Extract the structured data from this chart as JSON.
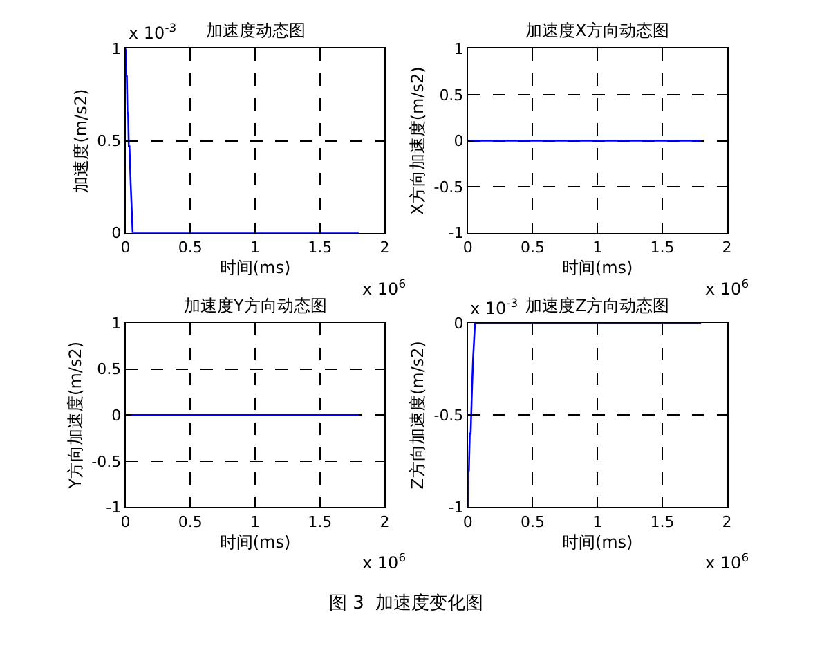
{
  "chart_data": [
    {
      "type": "line",
      "title": "加速度动态图",
      "xlabel": "时间(ms)",
      "ylabel": "加速度(m/s2)",
      "x": [
        0,
        0.005,
        0.01,
        0.015,
        0.02,
        0.025,
        0.03,
        0.04,
        0.055,
        1.8
      ],
      "series": [
        {
          "color": "#0000ff",
          "values": [
            1,
            0.85,
            0.85,
            0.65,
            0.65,
            0.47,
            0.47,
            0.26,
            0,
            0
          ]
        }
      ],
      "xlim": [
        0,
        2
      ],
      "xticks": [
        0,
        0.5,
        1,
        1.5,
        2
      ],
      "ylim": [
        0,
        1
      ],
      "yticks": [
        0,
        0.5,
        1
      ],
      "grid": true,
      "line_style": "solid",
      "annotations": [
        "x 10$^{6}$",
        "x 10$^{-3}$"
      ]
    },
    {
      "type": "line",
      "title": "加速度X方向动态图",
      "xlabel": "时间(ms)",
      "ylabel": "X方向加速度(m/s2)",
      "x": [
        0,
        1.8
      ],
      "series": [
        {
          "color": "#0000ff",
          "values": [
            0,
            0
          ]
        }
      ],
      "xlim": [
        0,
        2
      ],
      "xticks": [
        0,
        0.5,
        1,
        1.5,
        2
      ],
      "ylim": [
        -1,
        1
      ],
      "yticks": [
        -1,
        -0.5,
        0,
        0.5,
        1
      ],
      "grid": true,
      "line_style": "solid",
      "annotations": [
        "x 10$^{6}$"
      ]
    },
    {
      "type": "line",
      "title": "加速度Y方向动态图",
      "xlabel": "时间(ms)",
      "ylabel": "Y方向加速度(m/s2)",
      "x": [
        0,
        1.8
      ],
      "series": [
        {
          "color": "#0000ff",
          "values": [
            0,
            0
          ]
        }
      ],
      "xlim": [
        0,
        2
      ],
      "xticks": [
        0,
        0.5,
        1,
        1.5,
        2
      ],
      "ylim": [
        -1,
        1
      ],
      "yticks": [
        -1,
        -0.5,
        0,
        0.5,
        1
      ],
      "grid": true,
      "line_style": "solid",
      "annotations": [
        "x 10$^{6}$"
      ]
    },
    {
      "type": "line",
      "title": "加速度Z方向动态图",
      "xlabel": "时间(ms)",
      "ylabel": "Z方向加速度(m/s2)",
      "x": [
        0,
        0.004,
        0.008,
        0.015,
        0.022,
        0.03,
        0.04,
        0.055,
        1.8
      ],
      "series": [
        {
          "color": "#0000ff",
          "values": [
            -1,
            -0.8,
            -0.8,
            -0.6,
            -0.6,
            -0.4,
            -0.2,
            0,
            0
          ]
        }
      ],
      "xlim": [
        0,
        2
      ],
      "xticks": [
        0,
        0.5,
        1,
        1.5,
        2
      ],
      "ylim": [
        -1,
        0
      ],
      "yticks": [
        -1,
        -0.5,
        0
      ],
      "grid": true,
      "line_style": "solid",
      "annotations": [
        "x 10$^{6}$",
        "x 10$^{-3}$",
        "图 3  加速度变化图"
      ]
    }
  ]
}
